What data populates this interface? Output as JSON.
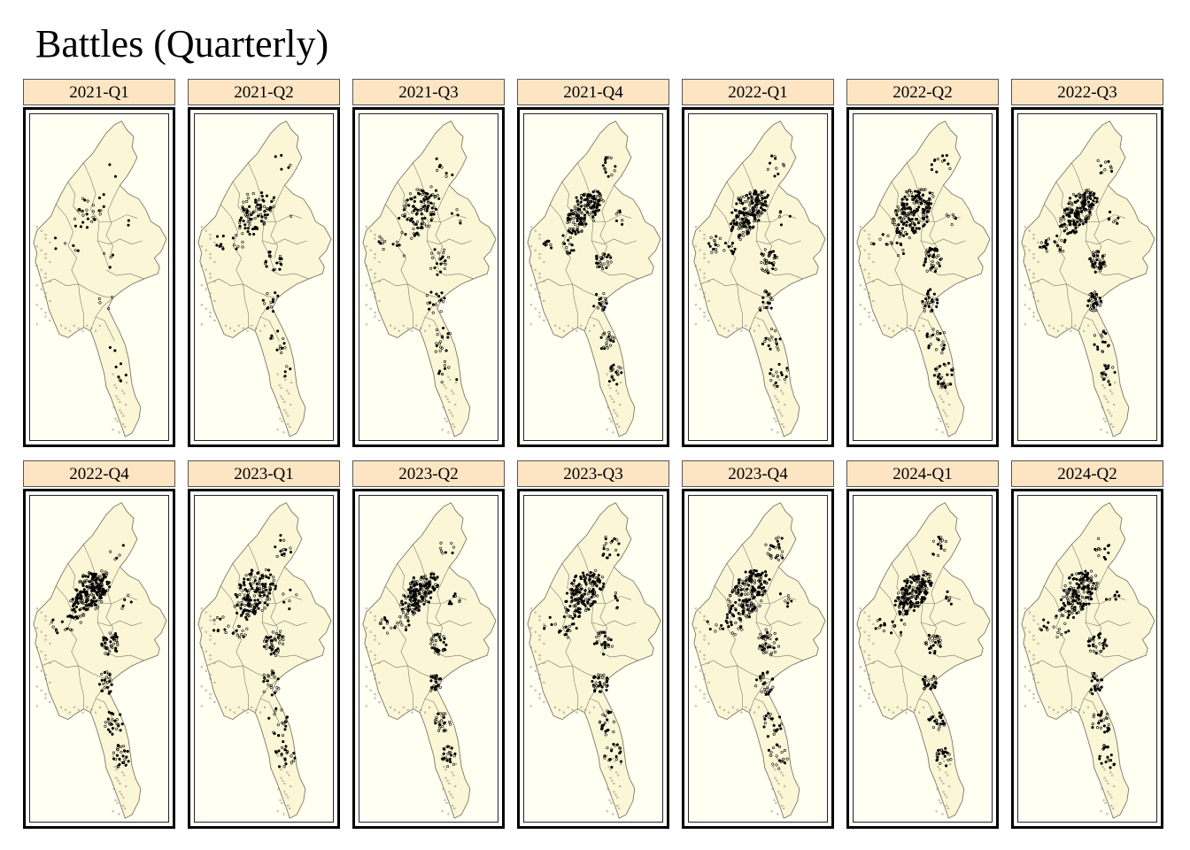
{
  "title": "Battles (Quarterly)",
  "colors": {
    "strip_bg": "#fde5c4",
    "map_fill": "#fbf7d6",
    "map_border": "#7a7466",
    "panel_bg": "#fffff2",
    "point": "#000000"
  },
  "panels": [
    {
      "label": "2021-Q1",
      "events": 55
    },
    {
      "label": "2021-Q2",
      "events": 160
    },
    {
      "label": "2021-Q3",
      "events": 200
    },
    {
      "label": "2021-Q4",
      "events": 290
    },
    {
      "label": "2022-Q1",
      "events": 320
    },
    {
      "label": "2022-Q2",
      "events": 340
    },
    {
      "label": "2022-Q3",
      "events": 330
    },
    {
      "label": "2022-Q4",
      "events": 360
    },
    {
      "label": "2023-Q1",
      "events": 320
    },
    {
      "label": "2023-Q2",
      "events": 330
    },
    {
      "label": "2023-Q3",
      "events": 320
    },
    {
      "label": "2023-Q4",
      "events": 360
    },
    {
      "label": "2024-Q1",
      "events": 330
    },
    {
      "label": "2024-Q2",
      "events": 300
    }
  ]
}
